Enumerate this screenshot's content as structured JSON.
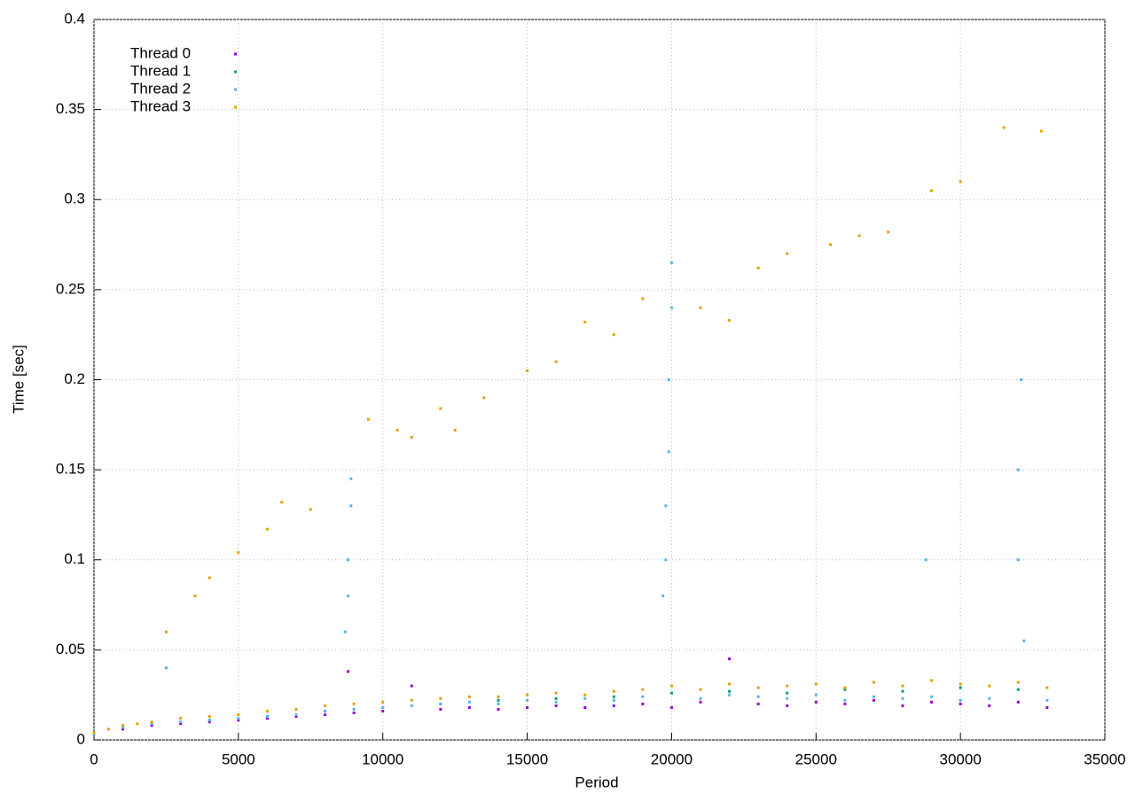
{
  "chart_data": {
    "type": "scatter",
    "xlabel": "Period",
    "ylabel": "Time [sec]",
    "xlim": [
      0,
      35000
    ],
    "ylim": [
      0,
      0.4
    ],
    "xticks": [
      0,
      5000,
      10000,
      15000,
      20000,
      25000,
      30000,
      35000
    ],
    "yticks": [
      0,
      0.05,
      0.1,
      0.15,
      0.2,
      0.25,
      0.3,
      0.35,
      0.4
    ],
    "grid": true,
    "legend": "upper left",
    "series": [
      {
        "name": "Thread 0",
        "color": "#9400d3",
        "x": [
          0,
          1000,
          2000,
          3000,
          4000,
          5000,
          6000,
          7000,
          8000,
          8800,
          9000,
          10000,
          11000,
          12000,
          13000,
          14000,
          15000,
          16000,
          17000,
          18000,
          19000,
          20000,
          21000,
          22000,
          23000,
          24000,
          25000,
          26000,
          27000,
          28000,
          29000,
          30000,
          31000,
          32000,
          33000
        ],
        "y": [
          0.003,
          0.006,
          0.008,
          0.009,
          0.01,
          0.011,
          0.012,
          0.013,
          0.014,
          0.038,
          0.015,
          0.016,
          0.03,
          0.017,
          0.018,
          0.017,
          0.018,
          0.019,
          0.018,
          0.019,
          0.02,
          0.018,
          0.021,
          0.045,
          0.02,
          0.019,
          0.021,
          0.02,
          0.022,
          0.019,
          0.021,
          0.02,
          0.019,
          0.021,
          0.018
        ]
      },
      {
        "name": "Thread 1",
        "color": "#009e73",
        "x": [
          0,
          2000,
          4000,
          6000,
          8000,
          10000,
          12000,
          14000,
          16000,
          18000,
          20000,
          22000,
          24000,
          26000,
          28000,
          30000,
          32000
        ],
        "y": [
          0.004,
          0.009,
          0.011,
          0.013,
          0.016,
          0.018,
          0.02,
          0.022,
          0.023,
          0.024,
          0.026,
          0.027,
          0.026,
          0.028,
          0.027,
          0.029,
          0.028
        ]
      },
      {
        "name": "Thread 2",
        "color": "#56b4e9",
        "x": [
          0,
          1000,
          2000,
          2500,
          3000,
          4000,
          5000,
          6000,
          7000,
          8000,
          8700,
          8800,
          8800,
          8900,
          8900,
          9000,
          10000,
          11000,
          12000,
          13000,
          14000,
          15000,
          16000,
          17000,
          18000,
          19000,
          19700,
          19800,
          19800,
          19900,
          19900,
          20000,
          20000,
          21000,
          22000,
          23000,
          24000,
          25000,
          26000,
          27000,
          28000,
          28800,
          29000,
          30000,
          31000,
          32000,
          32000,
          32100,
          32200,
          33000
        ],
        "y": [
          0.003,
          0.007,
          0.009,
          0.04,
          0.01,
          0.011,
          0.012,
          0.013,
          0.014,
          0.016,
          0.06,
          0.08,
          0.1,
          0.13,
          0.145,
          0.017,
          0.018,
          0.019,
          0.02,
          0.021,
          0.02,
          0.022,
          0.021,
          0.023,
          0.022,
          0.024,
          0.08,
          0.1,
          0.13,
          0.16,
          0.2,
          0.24,
          0.265,
          0.023,
          0.025,
          0.024,
          0.023,
          0.025,
          0.022,
          0.024,
          0.023,
          0.1,
          0.024,
          0.022,
          0.023,
          0.1,
          0.15,
          0.2,
          0.055,
          0.022
        ]
      },
      {
        "name": "Thread 3",
        "color": "#e69f00",
        "x": [
          0,
          500,
          1000,
          1500,
          2000,
          3000,
          4000,
          5000,
          6000,
          7000,
          8000,
          9000,
          10000,
          11000,
          12000,
          13000,
          14000,
          15000,
          16000,
          17000,
          18000,
          19000,
          20000,
          21000,
          22000,
          23000,
          24000,
          25000,
          26000,
          27000,
          28000,
          29000,
          30000,
          31000,
          32000,
          33000,
          2500,
          3500,
          4000,
          5000,
          6000,
          6500,
          7500,
          9500,
          10500,
          11000,
          12000,
          12500,
          13500,
          15000,
          16000,
          17000,
          18000,
          19000,
          21000,
          22000,
          23000,
          24000,
          25500,
          26500,
          27500,
          29000,
          30000,
          31500,
          32800
        ],
        "y": [
          0.004,
          0.006,
          0.008,
          0.009,
          0.01,
          0.012,
          0.013,
          0.014,
          0.016,
          0.017,
          0.019,
          0.02,
          0.021,
          0.022,
          0.023,
          0.024,
          0.024,
          0.025,
          0.026,
          0.025,
          0.027,
          0.028,
          0.03,
          0.028,
          0.031,
          0.029,
          0.03,
          0.031,
          0.029,
          0.032,
          0.03,
          0.033,
          0.031,
          0.03,
          0.032,
          0.029,
          0.06,
          0.08,
          0.09,
          0.104,
          0.117,
          0.132,
          0.128,
          0.178,
          0.172,
          0.168,
          0.184,
          0.172,
          0.19,
          0.205,
          0.21,
          0.232,
          0.225,
          0.245,
          0.24,
          0.233,
          0.262,
          0.27,
          0.275,
          0.28,
          0.282,
          0.305,
          0.31,
          0.34,
          0.338
        ]
      }
    ]
  }
}
